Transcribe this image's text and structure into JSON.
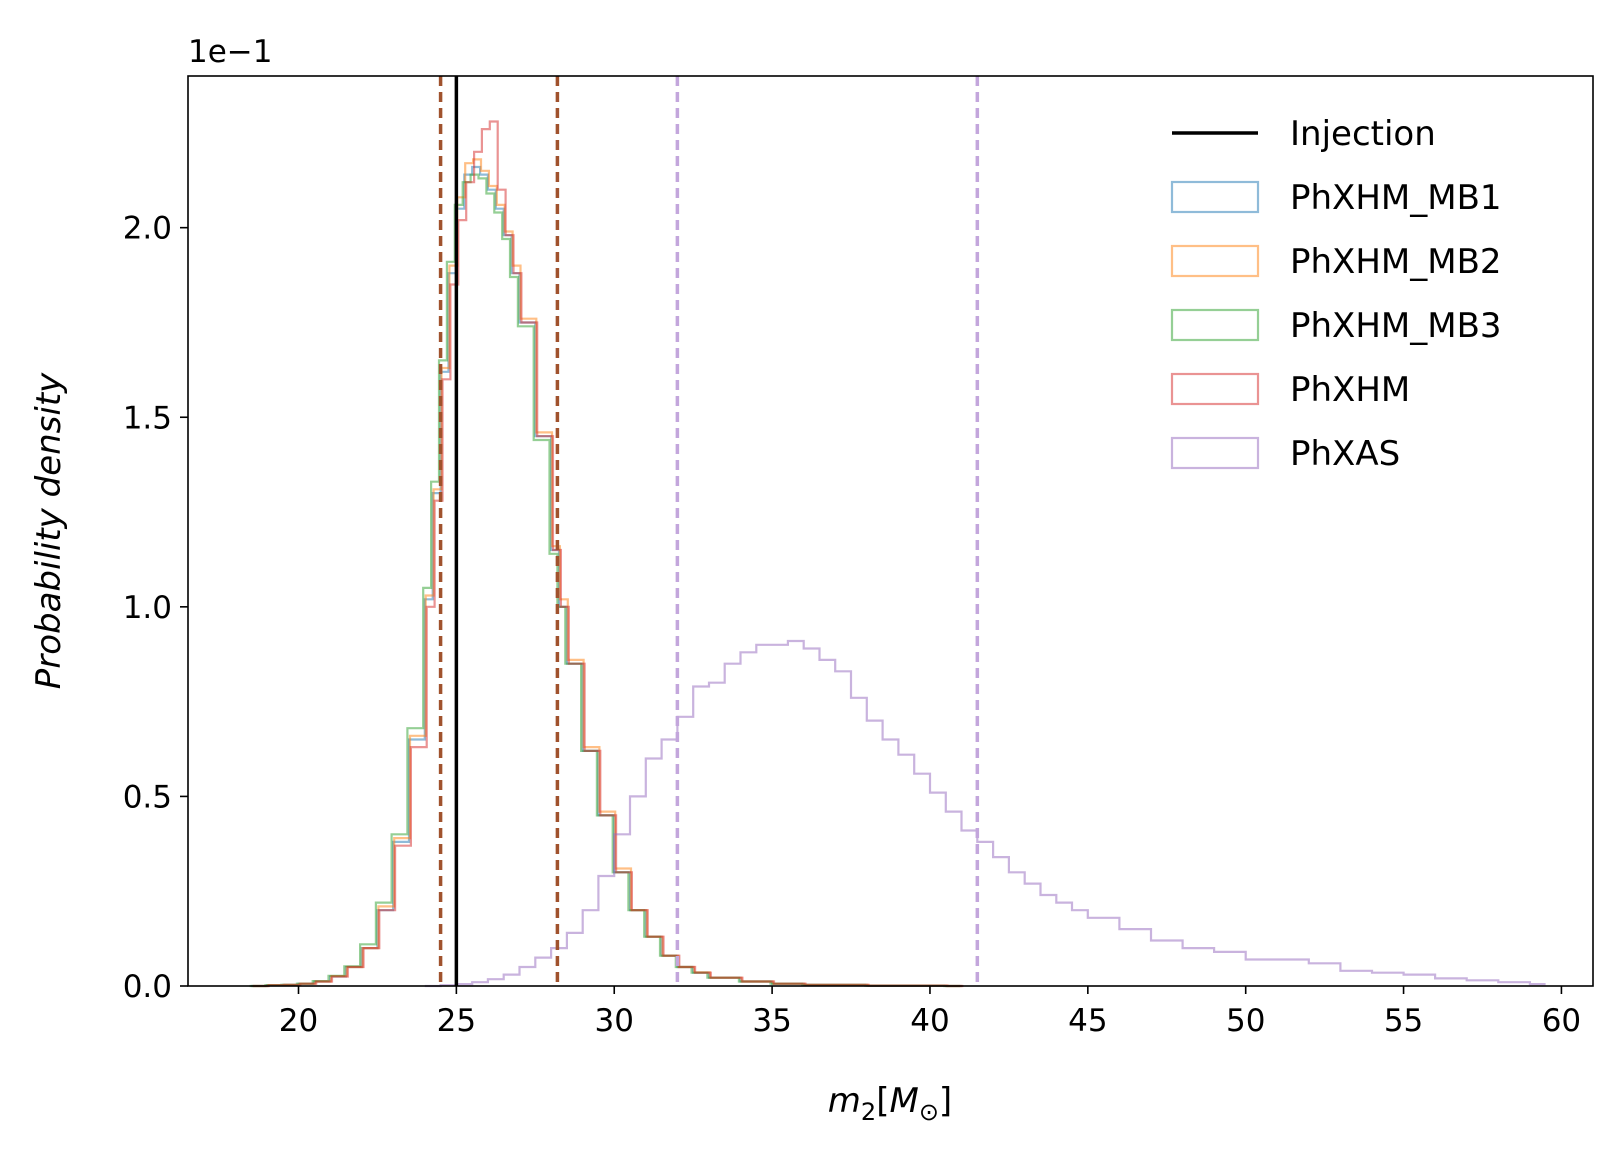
{
  "chart_data": {
    "type": "histogram",
    "xlabel": "m₂[M⊙]",
    "xlabel_parts": {
      "var": "m",
      "sub": "2",
      "unit_open": "[",
      "unit": "M",
      "unit_sub": "⊙",
      "unit_close": "]"
    },
    "ylabel": "Probability density",
    "offset_text": "1e−1",
    "xlim": [
      16.5,
      61
    ],
    "ylim": [
      0,
      2.4
    ],
    "xticks": [
      20,
      25,
      30,
      35,
      40,
      45,
      50,
      55,
      60
    ],
    "xtick_labels": [
      "20",
      "25",
      "30",
      "35",
      "40",
      "45",
      "50",
      "55",
      "60"
    ],
    "yticks": [
      0,
      0.5,
      1.0,
      1.5,
      2.0
    ],
    "ytick_labels": [
      "0.0",
      "0.5",
      "1.0",
      "1.5",
      "2.0"
    ],
    "legend_position": "top-right",
    "legend": [
      {
        "label": "Injection",
        "kind": "line",
        "color": "#000000"
      },
      {
        "label": "PhXHM_MB1",
        "kind": "patch",
        "color": "#1f77b4"
      },
      {
        "label": "PhXHM_MB2",
        "kind": "patch",
        "color": "#ff7f0e"
      },
      {
        "label": "PhXHM_MB3",
        "kind": "patch",
        "color": "#2ca02c"
      },
      {
        "label": "PhXHM",
        "kind": "patch",
        "color": "#d62728"
      },
      {
        "label": "PhXAS",
        "kind": "patch",
        "color": "#9467bd"
      }
    ],
    "injection_line": {
      "x": 25.0,
      "color": "#000000"
    },
    "credible_lines": [
      {
        "name": "phxhm-lower",
        "x": 24.5,
        "color": "#a0522d"
      },
      {
        "name": "phxhm-upper",
        "x": 28.2,
        "color": "#a0522d"
      },
      {
        "name": "phxas-lower",
        "x": 32.0,
        "color": "#c3a6dc"
      },
      {
        "name": "phxas-upper",
        "x": 41.5,
        "color": "#c3a6dc"
      }
    ],
    "series": [
      {
        "name": "PhXHM_MB1",
        "color": "#1f77b4",
        "opacity": 0.5,
        "shift": 0.0,
        "x": [
          18.5,
          19,
          19.5,
          20,
          20.5,
          21,
          21.5,
          22,
          22.5,
          23,
          23.5,
          24,
          24.25,
          24.5,
          24.75,
          25,
          25.25,
          25.5,
          25.75,
          26,
          26.25,
          26.5,
          26.75,
          27,
          27.5,
          28,
          28.25,
          28.5,
          29,
          29.5,
          30,
          30.5,
          31,
          31.5,
          32,
          32.5,
          33,
          34,
          35,
          36,
          38,
          40.5
        ],
        "y": [
          0.0,
          0.002,
          0.003,
          0.006,
          0.012,
          0.025,
          0.05,
          0.1,
          0.2,
          0.38,
          0.65,
          1.02,
          1.3,
          1.62,
          1.88,
          2.05,
          2.14,
          2.16,
          2.14,
          2.1,
          2.05,
          1.98,
          1.88,
          1.75,
          1.45,
          1.15,
          1.0,
          0.85,
          0.62,
          0.45,
          0.3,
          0.2,
          0.13,
          0.08,
          0.05,
          0.035,
          0.022,
          0.012,
          0.006,
          0.003,
          0.001,
          0.0
        ]
      },
      {
        "name": "PhXHM_MB2",
        "color": "#ff7f0e",
        "opacity": 0.5,
        "shift": 0.03,
        "x": [
          18.5,
          19,
          19.5,
          20,
          20.5,
          21,
          21.5,
          22,
          22.5,
          23,
          23.5,
          24,
          24.25,
          24.5,
          24.75,
          25,
          25.25,
          25.5,
          25.75,
          26,
          26.25,
          26.5,
          26.75,
          27,
          27.5,
          28,
          28.25,
          28.5,
          29,
          29.5,
          30,
          30.5,
          31,
          31.5,
          32,
          32.5,
          33,
          34,
          35,
          36,
          38,
          40.5
        ],
        "y": [
          0.0,
          0.002,
          0.003,
          0.006,
          0.012,
          0.026,
          0.05,
          0.1,
          0.21,
          0.39,
          0.66,
          1.03,
          1.31,
          1.63,
          1.9,
          2.08,
          2.17,
          2.18,
          2.15,
          2.11,
          2.06,
          1.99,
          1.9,
          1.76,
          1.46,
          1.16,
          1.02,
          0.86,
          0.63,
          0.46,
          0.31,
          0.2,
          0.13,
          0.08,
          0.05,
          0.036,
          0.022,
          0.012,
          0.006,
          0.003,
          0.001,
          0.0
        ]
      },
      {
        "name": "PhXHM_MB3",
        "color": "#2ca02c",
        "opacity": 0.5,
        "shift": -0.05,
        "x": [
          18.5,
          19,
          19.5,
          20,
          20.5,
          21,
          21.5,
          22,
          22.5,
          23,
          23.5,
          24,
          24.25,
          24.5,
          24.75,
          25,
          25.25,
          25.5,
          25.75,
          26,
          26.25,
          26.5,
          26.75,
          27,
          27.5,
          28,
          28.25,
          28.5,
          29,
          29.5,
          30,
          30.5,
          31,
          31.5,
          32,
          32.5,
          33,
          34,
          35,
          36,
          38,
          40.5
        ],
        "y": [
          0.0,
          0.002,
          0.003,
          0.006,
          0.013,
          0.027,
          0.052,
          0.11,
          0.22,
          0.4,
          0.68,
          1.05,
          1.33,
          1.65,
          1.91,
          2.06,
          2.12,
          2.14,
          2.13,
          2.09,
          2.04,
          1.97,
          1.87,
          1.74,
          1.44,
          1.14,
          1.0,
          0.85,
          0.62,
          0.45,
          0.3,
          0.2,
          0.13,
          0.08,
          0.05,
          0.035,
          0.022,
          0.012,
          0.006,
          0.003,
          0.001,
          0.0
        ]
      },
      {
        "name": "PhXHM",
        "color": "#d62728",
        "opacity": 0.5,
        "shift": 0.06,
        "x": [
          18.5,
          19,
          19.5,
          20,
          20.5,
          21,
          21.5,
          22,
          22.5,
          23,
          23.5,
          24,
          24.25,
          24.5,
          24.75,
          25,
          25.25,
          25.5,
          25.75,
          26,
          26.25,
          26.5,
          26.75,
          27,
          27.5,
          28,
          28.25,
          28.5,
          29,
          29.5,
          30,
          30.5,
          31,
          31.5,
          32,
          32.5,
          33,
          34,
          35,
          36,
          38,
          40.5
        ],
        "y": [
          0.0,
          0.002,
          0.003,
          0.006,
          0.012,
          0.025,
          0.05,
          0.1,
          0.2,
          0.37,
          0.63,
          1.0,
          1.28,
          1.6,
          1.85,
          2.02,
          2.12,
          2.2,
          2.26,
          2.28,
          2.1,
          1.98,
          1.88,
          1.75,
          1.45,
          1.15,
          1.0,
          0.85,
          0.62,
          0.45,
          0.3,
          0.2,
          0.13,
          0.08,
          0.05,
          0.035,
          0.022,
          0.012,
          0.006,
          0.003,
          0.001,
          0.0
        ]
      },
      {
        "name": "PhXAS",
        "color": "#9467bd",
        "opacity": 0.5,
        "shift": 0.0,
        "x": [
          24,
          24.5,
          25,
          25.5,
          26,
          26.5,
          27,
          27.5,
          28,
          28.5,
          29,
          29.5,
          30,
          30.5,
          31,
          31.5,
          32,
          32.5,
          33,
          33.5,
          34,
          34.5,
          35,
          35.5,
          36,
          36.5,
          37,
          37.5,
          38,
          38.5,
          39,
          39.5,
          40,
          40.5,
          41,
          41.5,
          42,
          42.5,
          43,
          43.5,
          44,
          44.5,
          45,
          46,
          47,
          48,
          49,
          50,
          51,
          52,
          53,
          54,
          55,
          56,
          57,
          58,
          59
        ],
        "y": [
          0.0,
          0.002,
          0.005,
          0.01,
          0.018,
          0.03,
          0.05,
          0.075,
          0.1,
          0.14,
          0.2,
          0.29,
          0.4,
          0.5,
          0.6,
          0.65,
          0.71,
          0.79,
          0.8,
          0.85,
          0.88,
          0.9,
          0.9,
          0.91,
          0.89,
          0.86,
          0.83,
          0.76,
          0.7,
          0.65,
          0.61,
          0.56,
          0.51,
          0.46,
          0.41,
          0.38,
          0.34,
          0.3,
          0.27,
          0.24,
          0.22,
          0.2,
          0.18,
          0.15,
          0.12,
          0.1,
          0.09,
          0.07,
          0.07,
          0.06,
          0.04,
          0.035,
          0.03,
          0.02,
          0.015,
          0.01,
          0.005
        ]
      }
    ]
  }
}
